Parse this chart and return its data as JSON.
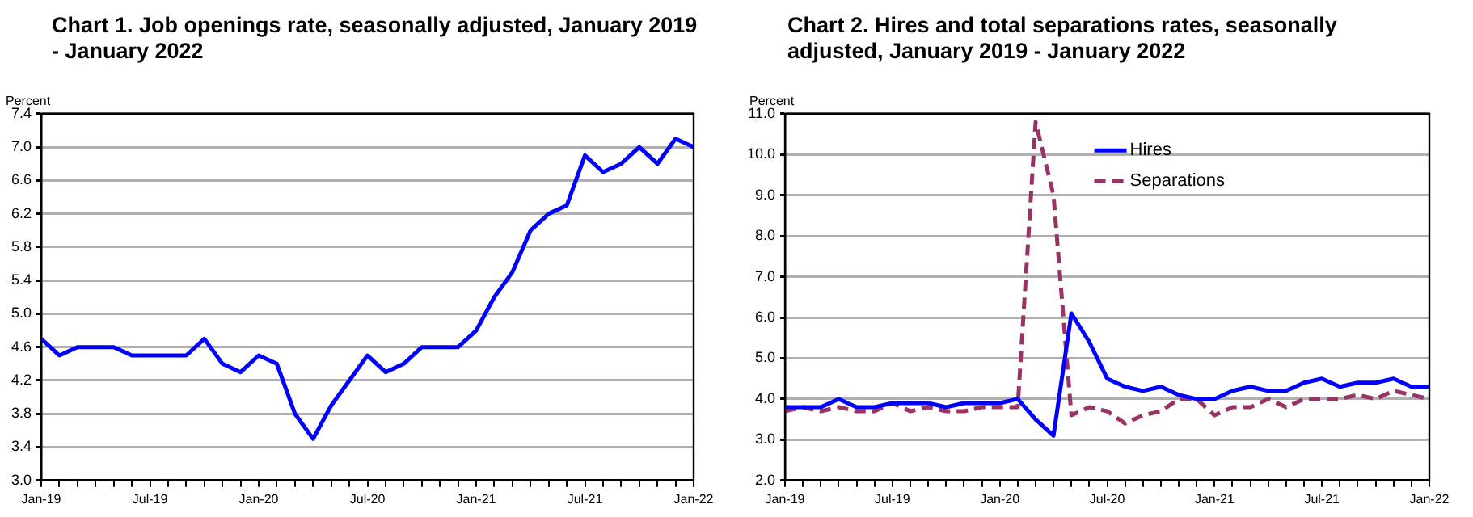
{
  "chart_data": [
    {
      "type": "line",
      "title": "Chart 1. Job openings rate, seasonally adjusted, January 2019 - January 2022",
      "ylabel": "Percent",
      "categories": [
        "Jan-19",
        null,
        null,
        null,
        null,
        null,
        "Jul-19",
        null,
        null,
        null,
        null,
        null,
        "Jan-20",
        null,
        null,
        null,
        null,
        null,
        "Jul-20",
        null,
        null,
        null,
        null,
        null,
        "Jan-21",
        null,
        null,
        null,
        null,
        null,
        "Jul-21",
        null,
        null,
        null,
        null,
        null,
        "Jan-22"
      ],
      "series": [
        {
          "color": "#0000ff",
          "values": [
            4.7,
            4.5,
            4.6,
            4.6,
            4.6,
            4.5,
            4.5,
            4.5,
            4.5,
            4.7,
            4.4,
            4.3,
            4.5,
            4.4,
            3.8,
            3.5,
            3.9,
            4.2,
            4.5,
            4.3,
            4.4,
            4.6,
            4.6,
            4.6,
            4.8,
            5.2,
            5.5,
            6.0,
            6.2,
            6.3,
            6.9,
            6.7,
            6.8,
            7.0,
            6.8,
            7.1,
            7.0
          ]
        }
      ],
      "ylim": [
        3.0,
        7.4
      ],
      "yticks": [
        {
          "value": 3,
          "label": "3.0"
        },
        3.4,
        3.8,
        4.2,
        4.6,
        {
          "value": 5,
          "label": "5.0"
        },
        5.4,
        5.8,
        6.2,
        6.6,
        {
          "value": 7,
          "label": "7.0"
        },
        7.4
      ],
      "grid": "y",
      "marker": "none",
      "line_style": "solid"
    },
    {
      "type": "line",
      "title": "Chart 2. Hires and total separations rates, seasonally adjusted, January 2019 - January 2022",
      "ylabel": "Percent",
      "categories": [
        "Jan-19",
        null,
        null,
        null,
        null,
        null,
        "Jul-19",
        null,
        null,
        null,
        null,
        null,
        "Jan-20",
        null,
        null,
        null,
        null,
        null,
        "Jul-20",
        null,
        null,
        null,
        null,
        null,
        "Jan-21",
        null,
        null,
        null,
        null,
        null,
        "Jul-21",
        null,
        null,
        null,
        null,
        null,
        "Jan-22"
      ],
      "series": [
        {
          "name": "Hires",
          "color": "#0000ff",
          "line_style": "solid",
          "values": [
            3.8,
            3.8,
            3.8,
            4.0,
            3.8,
            3.8,
            3.9,
            3.9,
            3.9,
            3.8,
            3.9,
            3.9,
            3.9,
            4.0,
            3.5,
            3.1,
            6.1,
            5.4,
            4.5,
            4.3,
            4.2,
            4.3,
            4.1,
            4.0,
            4.0,
            4.2,
            4.3,
            4.2,
            4.2,
            4.4,
            4.5,
            4.3,
            4.4,
            4.4,
            4.5,
            4.3,
            4.3
          ]
        },
        {
          "name": "Separations",
          "color": "#993366",
          "line_style": "dashed",
          "values": [
            3.7,
            3.8,
            3.7,
            3.8,
            3.7,
            3.7,
            3.9,
            3.7,
            3.8,
            3.7,
            3.7,
            3.8,
            3.8,
            3.8,
            10.8,
            9.0,
            3.6,
            3.8,
            3.7,
            3.4,
            3.6,
            3.7,
            4.0,
            4.0,
            3.6,
            3.8,
            3.8,
            4.0,
            3.8,
            4.0,
            4.0,
            4.0,
            4.1,
            4.0,
            4.2,
            4.1,
            4.0
          ]
        }
      ],
      "ylim": [
        2.0,
        11.0
      ],
      "yticks": [
        {
          "value": 2,
          "label": "2.0"
        },
        {
          "value": 3,
          "label": "3.0"
        },
        {
          "value": 4,
          "label": "4.0"
        },
        {
          "value": 5,
          "label": "5.0"
        },
        {
          "value": 6,
          "label": "6.0"
        },
        {
          "value": 7,
          "label": "7.0"
        },
        {
          "value": 8,
          "label": "8.0"
        },
        {
          "value": 9,
          "label": "9.0"
        },
        {
          "value": 10,
          "label": "10.0"
        },
        {
          "value": 11,
          "label": "11.0"
        }
      ],
      "grid": "y",
      "legend": "top",
      "marker": "none"
    }
  ]
}
